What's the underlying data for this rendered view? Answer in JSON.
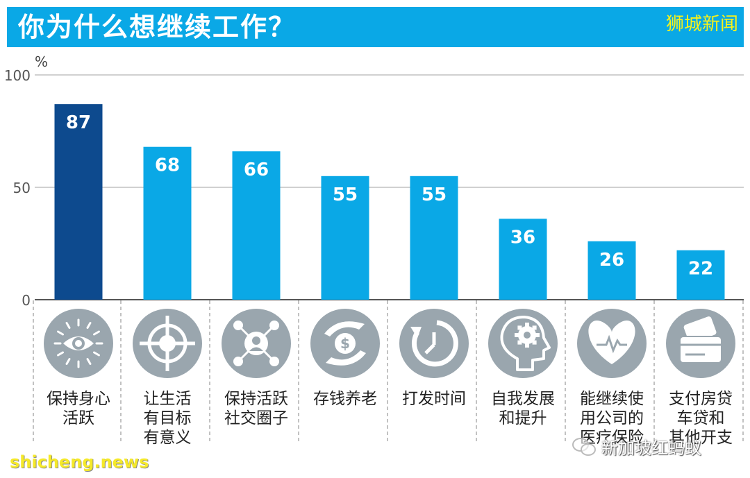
{
  "header": {
    "title": "你为什么想继续工作？",
    "brand": "狮城新闻"
  },
  "watermarks": {
    "left": "shicheng.news",
    "right": "新加坡红蚂蚁"
  },
  "colors": {
    "header_bg": "#0aa8e6",
    "bar": "#0aa8e6",
    "bar_highlight": "#0d4a8e",
    "icon_circle": "#9aa6ae",
    "brand_text": "#f7f21a"
  },
  "chart_data": {
    "type": "bar",
    "ylabel": "%",
    "ylim": [
      0,
      100
    ],
    "yticks": [
      0,
      50,
      100
    ],
    "grid": true,
    "categories": [
      "保持身心\n活跃",
      "让生活\n有目标\n有意义",
      "保持活跃\n社交圈子",
      "存钱养老",
      "打发时间",
      "自我发展\n和提升",
      "能继续使\n用公司的\n医疗保险",
      "支付房贷\n车贷和\n其他开支"
    ],
    "values": [
      87,
      68,
      66,
      55,
      55,
      36,
      26,
      22
    ],
    "icons": [
      "eye-icon",
      "target-icon",
      "social-network-icon",
      "money-hands-icon",
      "clock-icon",
      "head-gear-icon",
      "heart-pulse-icon",
      "credit-card-icon"
    ],
    "highlight_index": 0
  }
}
